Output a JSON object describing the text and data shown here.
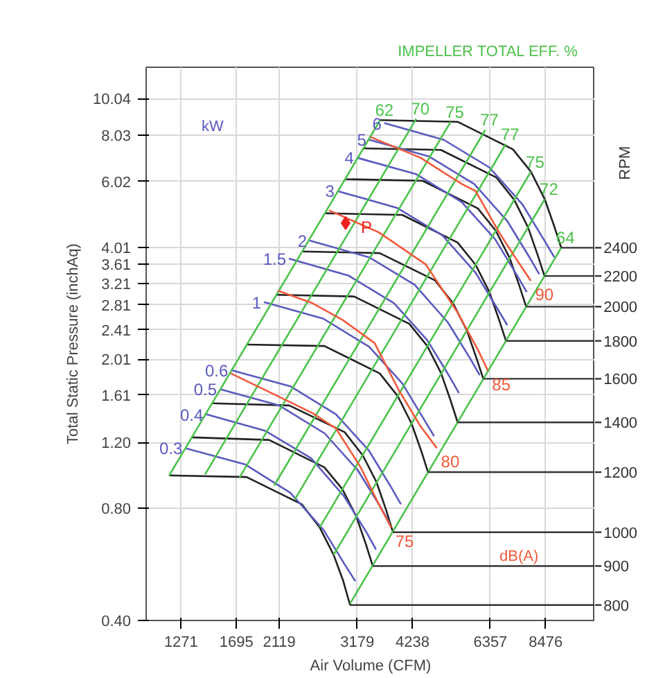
{
  "chart_data": {
    "type": "line",
    "xlabel": "Air Volume (CFM)",
    "ylabel": "Total Static Pressure (inchAq)",
    "y2label": "RPM",
    "log": "xy",
    "grid": true,
    "legend": false,
    "xlim": [
      1060,
      10960
    ],
    "ylim": [
      0.4,
      12.2
    ],
    "xticks": [
      1271,
      1695,
      2119,
      3179,
      4238,
      6357,
      8476
    ],
    "yticks": [
      {
        "value": 0.4,
        "label": "0.40"
      },
      {
        "value": 0.8,
        "label": "0.80"
      },
      {
        "value": 1.2,
        "label": "1.20"
      },
      1.61,
      2.01,
      2.41,
      2.81,
      3.21,
      3.61,
      4.01,
      6.02,
      8.03,
      10.04
    ],
    "annotations": [
      "IMPELLER TOTAL EFF. %",
      "kW",
      "dB(A)",
      {
        "text": "2400",
        "x": 9190,
        "y": 4.0
      },
      {
        "text": "2200",
        "x": 8424,
        "y": 3.36
      },
      {
        "text": "2000",
        "x": 7658,
        "y": 2.78
      },
      {
        "text": "1800",
        "x": 6893,
        "y": 2.25
      },
      {
        "text": "1600",
        "x": 6127,
        "y": 1.78
      },
      {
        "text": "1400",
        "x": 5361,
        "y": 1.36
      },
      {
        "text": "1200",
        "x": 4595,
        "y": 1.0
      },
      {
        "text": "1000",
        "x": 3829,
        "y": 0.69
      },
      {
        "text": "900",
        "x": 3446,
        "y": 0.56
      },
      {
        "text": "800",
        "x": 3063,
        "y": 0.44
      }
    ],
    "series": [
      {
        "type": "line",
        "color": "#222222",
        "x": [
          3582,
          5360,
          7147,
          7849,
          8436,
          8872,
          9190
        ],
        "values": [
          8.8,
          8.71,
          7.35,
          6.4,
          5.4,
          4.55,
          4.0
        ]
      },
      {
        "type": "line",
        "color": "#222222",
        "x": [
          3284,
          4913,
          6552,
          7195,
          7733,
          8133,
          8424
        ],
        "values": [
          7.39,
          7.32,
          6.18,
          5.38,
          4.54,
          3.82,
          3.36
        ]
      },
      {
        "type": "line",
        "color": "#222222",
        "x": [
          2985,
          4467,
          5956,
          6541,
          7030,
          7393,
          7658
        ],
        "values": [
          6.11,
          6.05,
          5.1,
          4.44,
          3.75,
          3.16,
          2.78
        ]
      },
      {
        "type": "line",
        "color": "#222222",
        "x": [
          2687,
          4020,
          5360,
          5887,
          6327,
          6654,
          6893
        ],
        "values": [
          4.95,
          4.9,
          4.13,
          3.6,
          3.04,
          2.56,
          2.25
        ]
      },
      {
        "type": "line",
        "color": "#222222",
        "x": [
          2388,
          3573,
          4765,
          5233,
          5624,
          5915,
          6127
        ],
        "values": [
          3.91,
          3.87,
          3.27,
          2.84,
          2.4,
          2.02,
          1.78
        ]
      },
      {
        "type": "line",
        "color": "#222222",
        "x": [
          2090,
          3127,
          4169,
          4578,
          4921,
          5175,
          5361
        ],
        "values": [
          2.99,
          2.96,
          2.5,
          2.18,
          1.84,
          1.55,
          1.36
        ]
      },
      {
        "type": "line",
        "color": "#222222",
        "x": [
          1791,
          2680,
          3574,
          3925,
          4218,
          4436,
          4595
        ],
        "values": [
          2.2,
          2.18,
          1.84,
          1.6,
          1.35,
          1.14,
          1.0
        ]
      },
      {
        "type": "line",
        "color": "#222222",
        "x": [
          1493,
          2233,
          2978,
          3271,
          3515,
          3697,
          3829
        ],
        "values": [
          1.53,
          1.51,
          1.28,
          1.11,
          0.94,
          0.79,
          0.69
        ]
      },
      {
        "type": "line",
        "color": "#222222",
        "x": [
          1343,
          2010,
          2680,
          2943,
          3164,
          3327,
          3446
        ],
        "values": [
          1.24,
          1.22,
          1.03,
          0.9,
          0.76,
          0.64,
          0.56
        ]
      },
      {
        "type": "line",
        "color": "#222222",
        "x": [
          1194,
          1787,
          2382,
          2616,
          2812,
          2957,
          3063
        ],
        "values": [
          0.98,
          0.97,
          0.82,
          0.71,
          0.6,
          0.51,
          0.44
        ]
      },
      {
        "type": "line",
        "name": "6",
        "color": "#5a5abf",
        "x": [
          3660,
          4989,
          6324,
          7518,
          8433,
          8868
        ],
        "values": [
          8.64,
          7.79,
          6.57,
          5.22,
          4.17,
          3.77
        ]
      },
      {
        "type": "line",
        "name": "5",
        "color": "#5a5abf",
        "x": [
          3382,
          4610,
          5844,
          6947,
          7792,
          8195
        ],
        "values": [
          7.8,
          7.04,
          5.93,
          4.71,
          3.77,
          3.4
        ]
      },
      {
        "type": "line",
        "name": "4",
        "color": "#5a5abf",
        "x": [
          3171,
          4322,
          5479,
          6513,
          7306,
          7683
        ],
        "values": [
          6.98,
          6.3,
          5.3,
          4.22,
          3.37,
          3.04
        ]
      },
      {
        "type": "line",
        "name": "3",
        "color": "#5a5abf",
        "x": [
          2865,
          3905,
          4951,
          5885,
          6601,
          6942
        ],
        "values": [
          5.68,
          5.12,
          4.32,
          3.43,
          2.74,
          2.48
        ]
      },
      {
        "type": "line",
        "name": "2",
        "color": "#5a5abf",
        "x": [
          2482,
          3383,
          4289,
          5098,
          5719,
          6014
        ],
        "values": [
          4.18,
          3.77,
          3.18,
          2.52,
          2.02,
          1.82
        ]
      },
      {
        "type": "line",
        "name": "1.5",
        "color": "#5a5abf",
        "x": [
          2228,
          3037,
          3850,
          4576,
          5133,
          5398
        ],
        "values": [
          3.74,
          3.37,
          2.84,
          2.26,
          1.81,
          1.63
        ]
      },
      {
        "type": "line",
        "name": "1",
        "color": "#5a5abf",
        "x": [
          1957,
          2667,
          3382,
          4020,
          4509,
          4742
        ],
        "values": [
          2.86,
          2.58,
          2.17,
          1.73,
          1.38,
          1.25
        ]
      },
      {
        "type": "line",
        "name": "0.6",
        "color": "#5a5abf",
        "x": [
          1647,
          2245,
          2846,
          3383,
          3795,
          3991
        ],
        "values": [
          1.88,
          1.7,
          1.43,
          1.14,
          0.91,
          0.82
        ]
      },
      {
        "type": "line",
        "name": "0.5",
        "color": "#5a5abf",
        "x": [
          1554,
          2118,
          2685,
          3192,
          3580,
          3765
        ],
        "values": [
          1.67,
          1.51,
          1.27,
          1.01,
          0.81,
          0.73
        ]
      },
      {
        "type": "line",
        "name": "0.4",
        "color": "#5a5abf",
        "x": [
          1447,
          1972,
          2500,
          2972,
          3334,
          3506
        ],
        "values": [
          1.43,
          1.29,
          1.09,
          0.86,
          0.69,
          0.62
        ]
      },
      {
        "type": "line",
        "name": "0.3",
        "color": "#5a5abf",
        "x": [
          1299,
          1771,
          2245,
          2668,
          2993,
          3148
        ],
        "values": [
          1.16,
          1.05,
          0.88,
          0.7,
          0.56,
          0.51
        ]
      },
      {
        "type": "line",
        "name": "62",
        "color": "#4cc24c",
        "x": [
          3582,
          1194
        ],
        "values": [
          8.8,
          0.978
        ]
      },
      {
        "type": "line",
        "name": "70",
        "color": "#4cc24c",
        "x": [
          4321,
          1440
        ],
        "values": [
          8.87,
          0.986
        ]
      },
      {
        "type": "line",
        "name": "75",
        "color": "#4cc24c",
        "x": [
          5171,
          1724
        ],
        "values": [
          8.71,
          0.968
        ]
      },
      {
        "type": "line",
        "name": "77",
        "color": "#4cc24c",
        "x": [
          6190,
          2063
        ],
        "values": [
          8.28,
          0.92
        ]
      },
      {
        "type": "line",
        "name": "77",
        "color": "#4cc24c",
        "x": [
          6892,
          2297
        ],
        "values": [
          7.6,
          0.844
        ]
      },
      {
        "type": "line",
        "name": "75",
        "color": "#4cc24c",
        "x": [
          7849,
          2616
        ],
        "values": [
          6.4,
          0.711
        ]
      },
      {
        "type": "line",
        "name": "72",
        "color": "#4cc24c",
        "x": [
          8436,
          2812
        ],
        "values": [
          5.4,
          0.6
        ]
      },
      {
        "type": "line",
        "name": "64",
        "color": "#4cc24c",
        "x": [
          9190,
          3063
        ],
        "values": [
          4.0,
          0.444
        ]
      },
      {
        "type": "line",
        "name": "90",
        "color": "#f05a3c",
        "x": [
          7849,
          7306,
          6650,
          5885,
          5478,
          4415,
          3407
        ],
        "values": [
          3.26,
          3.7,
          4.4,
          5.68,
          5.93,
          6.98,
          7.93
        ]
      },
      {
        "type": "line",
        "name": "85",
        "color": "#f05a3c",
        "x": [
          6276,
          5970,
          5360,
          4540,
          3557,
          2745
        ],
        "values": [
          1.87,
          2.12,
          2.68,
          3.61,
          4.4,
          5.04
        ]
      },
      {
        "type": "line",
        "name": "80",
        "color": "#f05a3c",
        "x": [
          4811,
          4415,
          3936,
          3480,
          2949,
          2518,
          2103
        ],
        "values": [
          1.16,
          1.33,
          1.67,
          2.22,
          2.56,
          2.84,
          3.07
        ]
      },
      {
        "type": "line",
        "name": "75",
        "color": "#f05a3c",
        "x": [
          3794,
          3557,
          3237,
          2846,
          2518,
          2103,
          1647
        ],
        "values": [
          0.71,
          0.82,
          1.03,
          1.31,
          1.44,
          1.6,
          1.84
        ]
      },
      {
        "type": "scatter",
        "name": "P",
        "color": "#ee2222",
        "marker": "diamond",
        "x": [
          2993
        ],
        "values": [
          4.66
        ]
      }
    ]
  }
}
